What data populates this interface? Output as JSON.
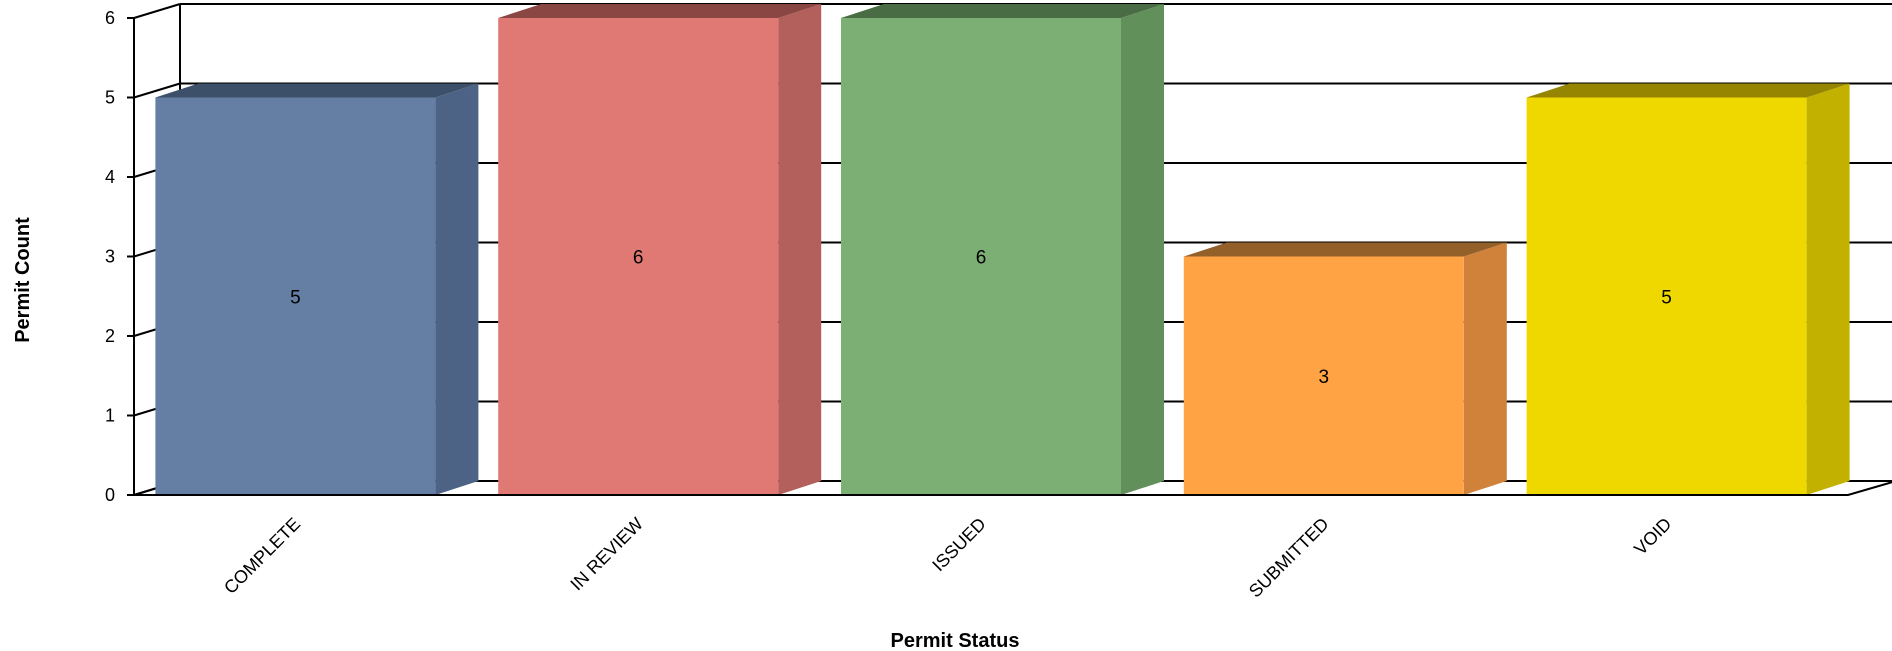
{
  "chart_data": {
    "type": "bar",
    "style": "3d-column",
    "categories": [
      "COMPLETE",
      "IN REVIEW",
      "ISSUED",
      "SUBMITTED",
      "VOID"
    ],
    "values": [
      5,
      6,
      6,
      3,
      5
    ],
    "title": "",
    "xlabel": "Permit Status",
    "ylabel": "Permit Count",
    "ylim": [
      0,
      6
    ],
    "yticks": [
      0,
      1,
      2,
      3,
      4,
      5,
      6
    ],
    "grid": true,
    "legend": "none",
    "data_labels": true,
    "colors": [
      {
        "front": "#647ea4",
        "side": "#4d6385",
        "top": "#3d5069"
      },
      {
        "front": "#e07873",
        "side": "#b35f5b",
        "top": "#8a4643"
      },
      {
        "front": "#7caf73",
        "side": "#62905b",
        "top": "#4a6c44"
      },
      {
        "front": "#ffa345",
        "side": "#d0823a",
        "top": "#94602a"
      },
      {
        "front": "#eed800",
        "side": "#c3b100",
        "top": "#958500"
      }
    ]
  }
}
